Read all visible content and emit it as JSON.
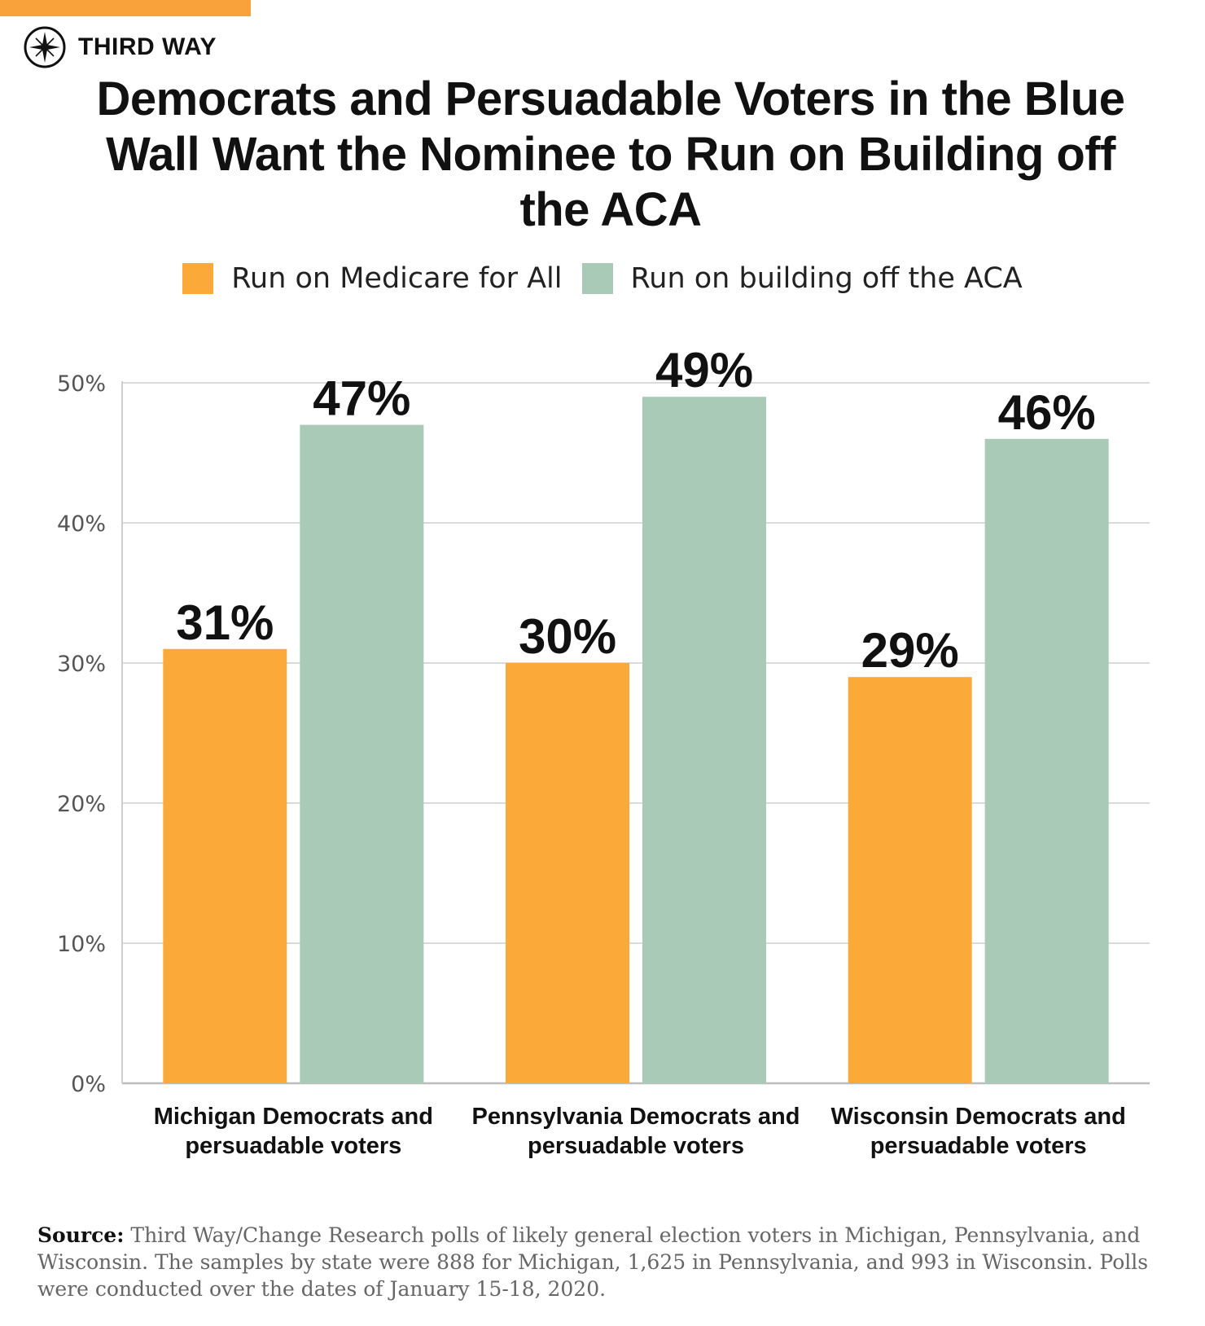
{
  "brand": {
    "name": "THIRD WAY",
    "logo_icon": "compass-star-icon",
    "accent": "#f9a13a"
  },
  "title": "Democrats and Persuadable Voters in the Blue Wall Want the Nominee to Run on Building off the ACA",
  "legend": [
    {
      "label": "Run on Medicare for All",
      "color": "#fbaa3a"
    },
    {
      "label": "Run on building off the ACA",
      "color": "#a8cab7"
    }
  ],
  "chart_data": {
    "type": "bar",
    "title": "Democrats and Persuadable Voters in the Blue Wall Want the Nominee to Run on Building off the ACA",
    "categories": [
      [
        "Michigan Democrats and",
        "persuadable voters"
      ],
      [
        "Pennsylvania Democrats and",
        "persuadable voters"
      ],
      [
        "Wisconsin Democrats and",
        "persuadable voters"
      ]
    ],
    "series": [
      {
        "name": "Run on Medicare for All",
        "values": [
          31,
          30,
          29
        ],
        "labels": [
          "31%",
          "30%",
          "29%"
        ],
        "color": "#fbaa3a"
      },
      {
        "name": "Run on building off the ACA",
        "values": [
          47,
          49,
          46
        ],
        "labels": [
          "47%",
          "49%",
          "46%"
        ],
        "color": "#a8cab7"
      }
    ],
    "yticks": [
      0,
      10,
      20,
      30,
      40,
      50
    ],
    "ytick_labels": [
      "0%",
      "10%",
      "20%",
      "30%",
      "40%",
      "50%"
    ],
    "ylim": [
      0,
      50
    ],
    "xlabel": "",
    "ylabel": "",
    "grid": true,
    "legend_position": "top-center"
  },
  "source": {
    "label": "Source:",
    "text": "Third Way/Change Research polls of likely general election voters in Michigan, Pennsylvania, and Wisconsin. The samples by state were 888 for Michigan, 1,625 in Pennsylvania, and 993 in Wisconsin. Polls were conducted over the dates of January 15-18, 2020."
  }
}
